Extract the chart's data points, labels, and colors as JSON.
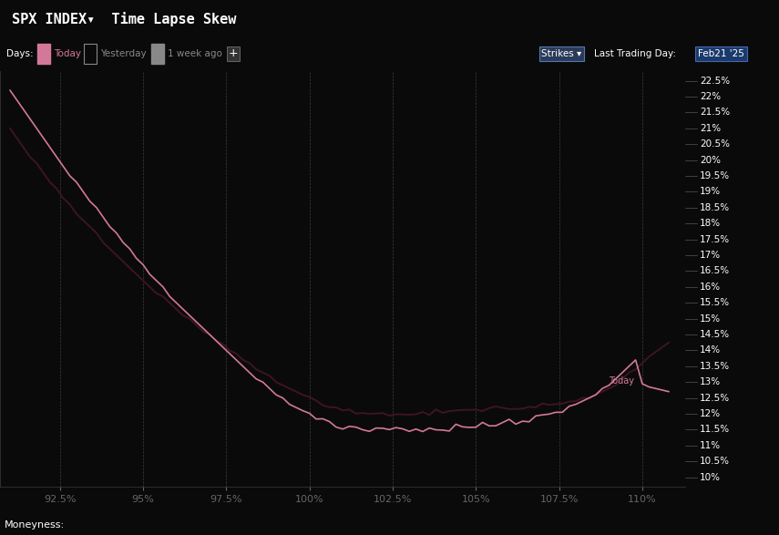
{
  "background_color": "#0a0a0a",
  "title_bar_color": "#1a3a6b",
  "subbar_color": "#111111",
  "grid_color": "#3a3a3a",
  "title_text": "SPX INDEX▾  Time Lapse Skew",
  "xlabel": "Moneyness:",
  "x_ticks": [
    0.925,
    0.95,
    0.975,
    1.0,
    1.025,
    1.05,
    1.075,
    1.1
  ],
  "x_tick_labels": [
    "92.5%",
    "95%",
    "97.5%",
    "100%",
    "102.5%",
    "105%",
    "107.5%",
    "110%"
  ],
  "y_ticks": [
    0.1,
    0.105,
    0.11,
    0.115,
    0.12,
    0.125,
    0.13,
    0.135,
    0.14,
    0.145,
    0.15,
    0.155,
    0.16,
    0.165,
    0.17,
    0.175,
    0.18,
    0.185,
    0.19,
    0.195,
    0.2,
    0.205,
    0.21,
    0.215,
    0.22,
    0.225
  ],
  "y_tick_labels": [
    "10%",
    "10.5%",
    "11%",
    "11.5%",
    "12%",
    "12.5%",
    "13%",
    "13.5%",
    "14%",
    "14.5%",
    "15%",
    "15.5%",
    "16%",
    "16.5%",
    "17%",
    "17.5%",
    "18%",
    "18.5%",
    "19%",
    "19.5%",
    "20%",
    "20.5%",
    "21%",
    "21.5%",
    "22%",
    "22.5%"
  ],
  "ylim": [
    0.097,
    0.228
  ],
  "xlim": [
    0.907,
    1.113
  ],
  "today_color": "#d4789a",
  "week_ago_color": "#3d1520",
  "annotation_text": "Today",
  "annotation_color": "#d4789a",
  "today_x": [
    0.91,
    0.912,
    0.914,
    0.916,
    0.918,
    0.92,
    0.922,
    0.924,
    0.926,
    0.928,
    0.93,
    0.932,
    0.934,
    0.936,
    0.938,
    0.94,
    0.942,
    0.944,
    0.946,
    0.948,
    0.95,
    0.952,
    0.954,
    0.956,
    0.958,
    0.96,
    0.962,
    0.964,
    0.966,
    0.968,
    0.97,
    0.972,
    0.974,
    0.976,
    0.978,
    0.98,
    0.982,
    0.984,
    0.986,
    0.988,
    0.99,
    0.992,
    0.994,
    0.996,
    0.998,
    1.0,
    1.002,
    1.004,
    1.006,
    1.008,
    1.01,
    1.012,
    1.014,
    1.016,
    1.018,
    1.02,
    1.022,
    1.024,
    1.026,
    1.028,
    1.03,
    1.032,
    1.034,
    1.036,
    1.038,
    1.04,
    1.042,
    1.044,
    1.046,
    1.048,
    1.05,
    1.052,
    1.054,
    1.056,
    1.058,
    1.06,
    1.062,
    1.064,
    1.066,
    1.068,
    1.07,
    1.072,
    1.074,
    1.076,
    1.078,
    1.08,
    1.082,
    1.084,
    1.086,
    1.088,
    1.09,
    1.092,
    1.094,
    1.096,
    1.098,
    1.1,
    1.102,
    1.104,
    1.106,
    1.108
  ],
  "today_y": [
    0.222,
    0.219,
    0.216,
    0.213,
    0.21,
    0.207,
    0.204,
    0.201,
    0.198,
    0.195,
    0.193,
    0.19,
    0.187,
    0.185,
    0.182,
    0.179,
    0.177,
    0.174,
    0.172,
    0.169,
    0.167,
    0.164,
    0.162,
    0.16,
    0.157,
    0.155,
    0.153,
    0.151,
    0.149,
    0.147,
    0.145,
    0.143,
    0.141,
    0.139,
    0.137,
    0.135,
    0.133,
    0.131,
    0.13,
    0.128,
    0.126,
    0.125,
    0.123,
    0.122,
    0.121,
    0.12,
    0.119,
    0.118,
    0.117,
    0.117,
    0.116,
    0.116,
    0.116,
    0.115,
    0.115,
    0.115,
    0.115,
    0.115,
    0.115,
    0.115,
    0.115,
    0.115,
    0.115,
    0.115,
    0.115,
    0.115,
    0.115,
    0.116,
    0.116,
    0.116,
    0.116,
    0.117,
    0.116,
    0.116,
    0.117,
    0.117,
    0.117,
    0.118,
    0.118,
    0.119,
    0.119,
    0.12,
    0.121,
    0.121,
    0.122,
    0.123,
    0.124,
    0.125,
    0.126,
    0.128,
    0.129,
    0.131,
    0.133,
    0.135,
    0.137,
    0.1295,
    0.1285,
    0.128,
    0.1275,
    0.127
  ],
  "week_ago_x": [
    0.91,
    0.912,
    0.914,
    0.916,
    0.918,
    0.92,
    0.922,
    0.924,
    0.926,
    0.928,
    0.93,
    0.932,
    0.934,
    0.936,
    0.938,
    0.94,
    0.942,
    0.944,
    0.946,
    0.948,
    0.95,
    0.952,
    0.954,
    0.956,
    0.958,
    0.96,
    0.962,
    0.964,
    0.966,
    0.968,
    0.97,
    0.972,
    0.974,
    0.976,
    0.978,
    0.98,
    0.982,
    0.984,
    0.986,
    0.988,
    0.99,
    0.992,
    0.994,
    0.996,
    0.998,
    1.0,
    1.002,
    1.004,
    1.006,
    1.008,
    1.01,
    1.012,
    1.014,
    1.016,
    1.018,
    1.02,
    1.022,
    1.024,
    1.026,
    1.028,
    1.03,
    1.032,
    1.034,
    1.036,
    1.038,
    1.04,
    1.042,
    1.044,
    1.046,
    1.048,
    1.05,
    1.052,
    1.054,
    1.056,
    1.058,
    1.06,
    1.062,
    1.064,
    1.066,
    1.068,
    1.07,
    1.072,
    1.074,
    1.076,
    1.078,
    1.08,
    1.082,
    1.084,
    1.086,
    1.088,
    1.09,
    1.092,
    1.094,
    1.096,
    1.098,
    1.1,
    1.102,
    1.104,
    1.106,
    1.108
  ],
  "week_ago_y": [
    0.21,
    0.207,
    0.204,
    0.201,
    0.199,
    0.196,
    0.193,
    0.191,
    0.188,
    0.186,
    0.183,
    0.181,
    0.179,
    0.177,
    0.174,
    0.172,
    0.17,
    0.168,
    0.166,
    0.164,
    0.162,
    0.16,
    0.158,
    0.157,
    0.155,
    0.153,
    0.151,
    0.15,
    0.148,
    0.146,
    0.145,
    0.143,
    0.142,
    0.14,
    0.139,
    0.137,
    0.136,
    0.134,
    0.133,
    0.132,
    0.13,
    0.129,
    0.128,
    0.127,
    0.126,
    0.125,
    0.124,
    0.123,
    0.122,
    0.122,
    0.121,
    0.121,
    0.12,
    0.12,
    0.12,
    0.12,
    0.12,
    0.12,
    0.12,
    0.12,
    0.12,
    0.12,
    0.12,
    0.12,
    0.121,
    0.121,
    0.121,
    0.121,
    0.121,
    0.121,
    0.121,
    0.121,
    0.122,
    0.122,
    0.122,
    0.122,
    0.122,
    0.122,
    0.122,
    0.122,
    0.123,
    0.123,
    0.123,
    0.123,
    0.124,
    0.124,
    0.125,
    0.125,
    0.126,
    0.127,
    0.128,
    0.129,
    0.131,
    0.133,
    0.134,
    0.136,
    0.138,
    0.1395,
    0.141,
    0.1425
  ]
}
